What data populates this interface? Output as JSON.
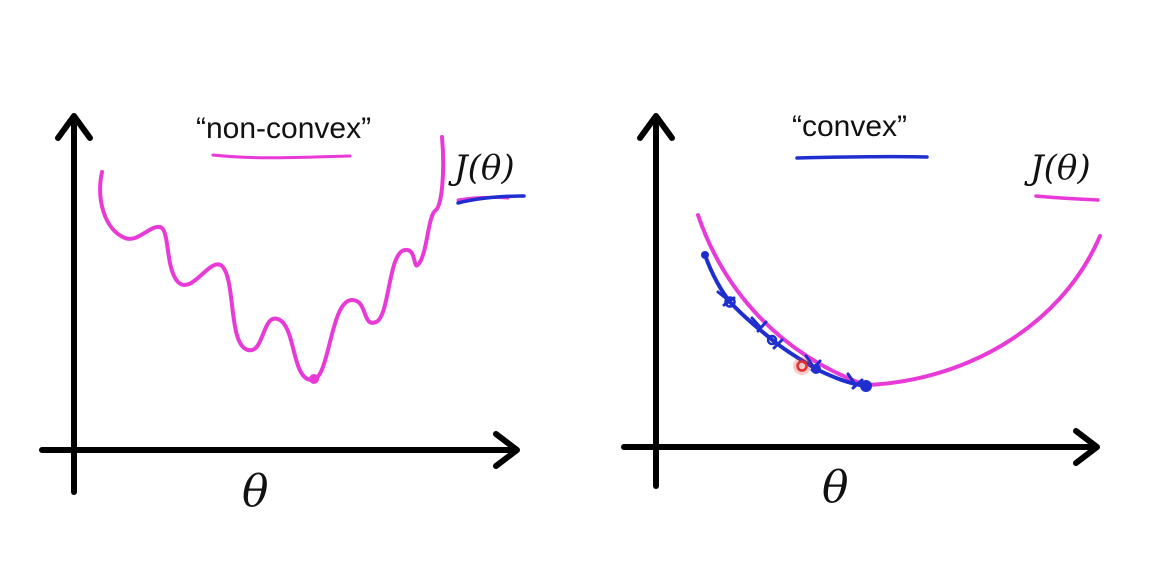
{
  "left_panel": {
    "title": "“non-convex”",
    "function_label": "J(θ)",
    "axis_label": "θ"
  },
  "right_panel": {
    "title": "“convex”",
    "function_label": "J(θ)",
    "axis_label": "θ"
  },
  "colors": {
    "axis": "#000000",
    "curve": "#e83ad6",
    "annotation": "#1f2ecf",
    "start_point": "#e53030",
    "text": "#111111"
  }
}
